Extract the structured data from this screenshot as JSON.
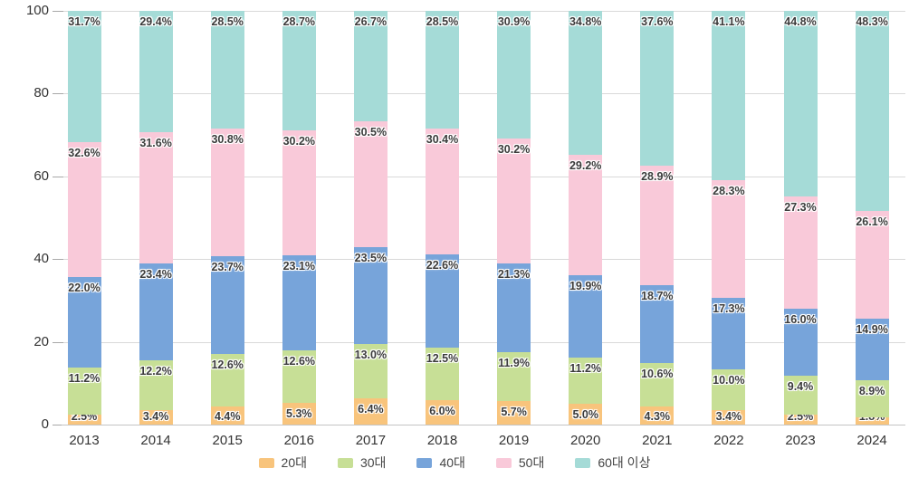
{
  "chart_data": {
    "type": "bar",
    "stacked": true,
    "orientation": "vertical",
    "title": "",
    "xlabel": "",
    "ylabel": "",
    "ylim": [
      0,
      100
    ],
    "yticks": [
      0,
      20,
      40,
      60,
      80,
      100
    ],
    "grid": true,
    "legend_position": "bottom",
    "value_suffix": "%",
    "categories": [
      "2013",
      "2014",
      "2015",
      "2016",
      "2017",
      "2018",
      "2019",
      "2020",
      "2021",
      "2022",
      "2023",
      "2024"
    ],
    "series": [
      {
        "name": "20대",
        "color": "#F8C47C",
        "values": [
          2.5,
          3.4,
          4.4,
          5.3,
          6.4,
          6.0,
          5.7,
          5.0,
          4.3,
          3.4,
          2.5,
          1.8
        ]
      },
      {
        "name": "30대",
        "color": "#C7DF96",
        "values": [
          11.2,
          12.2,
          12.6,
          12.6,
          13.0,
          12.5,
          11.9,
          11.2,
          10.6,
          10.0,
          9.4,
          8.9
        ]
      },
      {
        "name": "40대",
        "color": "#77A4DA",
        "values": [
          22.0,
          23.4,
          23.7,
          23.1,
          23.5,
          22.6,
          21.3,
          19.9,
          18.7,
          17.3,
          16.0,
          14.9
        ]
      },
      {
        "name": "50대",
        "color": "#F9C9D9",
        "values": [
          32.6,
          31.6,
          30.8,
          30.2,
          30.5,
          30.4,
          30.2,
          29.2,
          28.9,
          28.3,
          27.3,
          26.1
        ]
      },
      {
        "name": "60대 이상",
        "color": "#A5DBD7",
        "values": [
          31.7,
          29.4,
          28.5,
          28.7,
          26.7,
          28.5,
          30.9,
          34.8,
          37.6,
          41.1,
          44.8,
          48.3
        ]
      }
    ]
  }
}
